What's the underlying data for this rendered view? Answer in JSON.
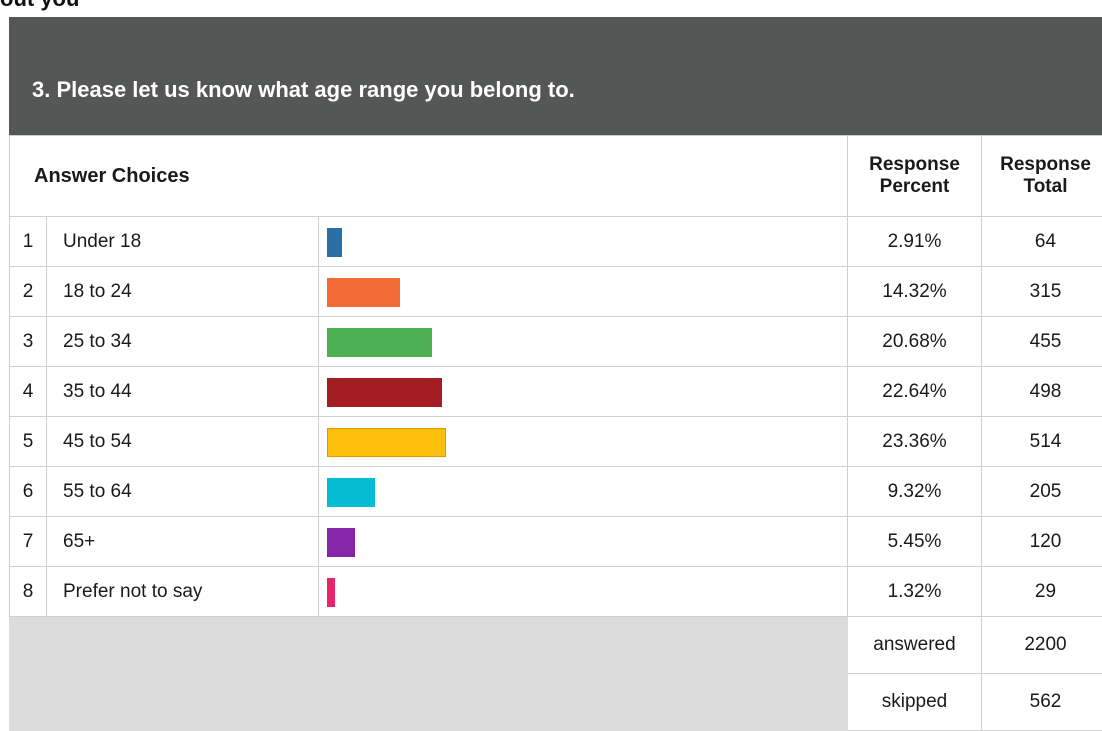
{
  "section": {
    "title": "out you"
  },
  "question": {
    "title": "3. Please let us know what age range you belong to."
  },
  "table": {
    "head_choices": "Answer Choices",
    "head_pct_1": "Response",
    "head_pct_2": "Percent",
    "head_total_1": "Response",
    "head_total_2": "Total"
  },
  "chart_data": {
    "type": "bar",
    "orientation": "horizontal",
    "categories": [
      "Under 18",
      "18 to 24",
      "25 to 34",
      "35 to 44",
      "45 to 54",
      "55 to 64",
      "65+",
      "Prefer not to say"
    ],
    "series": [
      {
        "values": [
          2.91,
          14.32,
          20.68,
          22.64,
          23.36,
          9.32,
          5.45,
          1.32
        ]
      }
    ],
    "labels": [
      "2.91%",
      "14.32%",
      "20.68%",
      "22.64%",
      "23.36%",
      "9.32%",
      "5.45%",
      "1.32%"
    ],
    "totals": [
      64,
      315,
      455,
      498,
      514,
      205,
      120,
      29
    ],
    "numbers": [
      "1",
      "2",
      "3",
      "4",
      "5",
      "6",
      "7",
      "8"
    ],
    "colors": [
      "#2a6fa8",
      "#f26b36",
      "#4db052",
      "#a21e22",
      "#fbbf0c",
      "#06bcd4",
      "#8526a8",
      "#e8246a"
    ],
    "xlim": [
      0,
      100
    ]
  },
  "summary": {
    "answered_label": "answered",
    "answered_value": "2200",
    "skipped_label": "skipped",
    "skipped_value": "562"
  }
}
